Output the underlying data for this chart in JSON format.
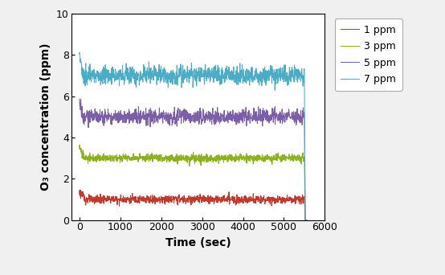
{
  "title": "",
  "xlabel": "Time (sec)",
  "ylabel": "O₃ concentration (ppm)",
  "xlim": [
    -200,
    6000
  ],
  "ylim": [
    0,
    10
  ],
  "xticks": [
    0,
    1000,
    2000,
    3000,
    4000,
    5000,
    6000
  ],
  "yticks": [
    0,
    2,
    4,
    6,
    8,
    10
  ],
  "series": [
    {
      "label": "1 ppm",
      "color": "#c0392b",
      "steady": 1.0,
      "start_val": 1.35,
      "ramp_end": 150,
      "noise": 0.1
    },
    {
      "label": "3 ppm",
      "color": "#8db020",
      "steady": 3.0,
      "start_val": 3.5,
      "ramp_end": 120,
      "noise": 0.1
    },
    {
      "label": "5 ppm",
      "color": "#7b5ea7",
      "steady": 5.0,
      "start_val": 5.8,
      "ramp_end": 100,
      "noise": 0.18
    },
    {
      "label": "7 ppm",
      "color": "#4bacc6",
      "steady": 7.0,
      "start_val": 8.1,
      "ramp_end": 80,
      "noise": 0.22
    }
  ],
  "drop_time": 5500,
  "total_time": 5560,
  "dt": 5,
  "figsize": [
    5.54,
    3.42
  ],
  "dpi": 100,
  "legend_fontsize": 9,
  "axis_label_fontsize": 10,
  "tick_fontsize": 9,
  "background_color": "#f0f0f0",
  "plot_bg_color": "#ffffff",
  "border_color": "#000000"
}
